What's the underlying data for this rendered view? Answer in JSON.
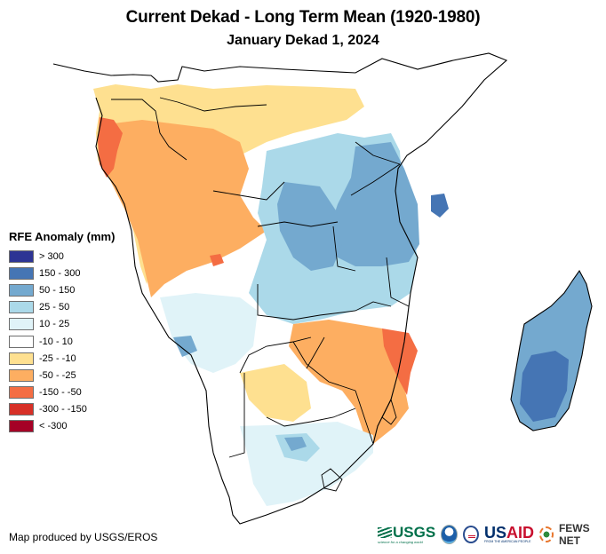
{
  "title": "Current Dekad - Long Term Mean (1920-1980)",
  "subtitle": "January Dekad 1, 2024",
  "legend": {
    "title": "RFE Anomaly (mm)",
    "items": [
      {
        "label": "> 300",
        "color": "#2d3494"
      },
      {
        "label": "150 - 300",
        "color": "#4575b4"
      },
      {
        "label": "50 - 150",
        "color": "#74a9cf"
      },
      {
        "label": "25 - 50",
        "color": "#abd9e9"
      },
      {
        "label": "10 - 25",
        "color": "#e0f3f8"
      },
      {
        "label": "-10 - 10",
        "color": "#ffffff"
      },
      {
        "label": "-25 - -10",
        "color": "#fee090"
      },
      {
        "label": "-50 - -25",
        "color": "#fdae61"
      },
      {
        "label": "-150 - -50",
        "color": "#f46d43"
      },
      {
        "label": "-300 - -150",
        "color": "#d73027"
      },
      {
        "label": "< -300",
        "color": "#a50026"
      }
    ]
  },
  "credit": "Map produced by USGS/EROS",
  "logos": {
    "usgs": "USGS",
    "usgs_tagline": "science for a changing world",
    "usaid_prefix": "US",
    "usaid_suffix": "AID",
    "usaid_tagline": "FROM THE AMERICAN PEOPLE",
    "fews": "FEWS NET"
  },
  "map": {
    "region": "Southern and Eastern Africa",
    "regions_summary": [
      {
        "area": "Gabon / Congo coast",
        "class": "-150 - -50"
      },
      {
        "area": "Central Congo / Angola",
        "class": "-50 - -25"
      },
      {
        "area": "Northern DRC / CAR",
        "class": "-25 - -10"
      },
      {
        "area": "Tanzania",
        "class": "50 - 150"
      },
      {
        "area": "Zambia / Malawi",
        "class": "50 - 150"
      },
      {
        "area": "Mozambique (central)",
        "class": "-150 - -50"
      },
      {
        "area": "Zimbabwe",
        "class": "-50 - -25"
      },
      {
        "area": "Madagascar (south-east)",
        "class": "150 - 300"
      },
      {
        "area": "Madagascar (north-west)",
        "class": "50 - 150"
      },
      {
        "area": "South Africa (interior)",
        "class": "25 - 50"
      },
      {
        "area": "Namibia / Botswana",
        "class": "-10 - 10"
      },
      {
        "area": "Kenya / Somalia",
        "class": "-10 - 10"
      }
    ]
  }
}
